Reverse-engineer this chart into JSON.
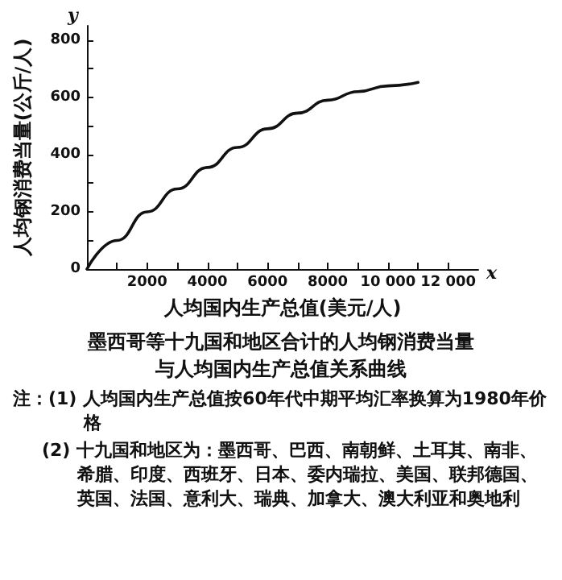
{
  "chart_data": {
    "type": "line",
    "title": "墨西哥等十九国和地区合计的人均钢消费当量与人均国内生产总值关系曲线",
    "xlabel": "人均国内生产总值(美元/人)",
    "ylabel": "人均钢消费当量(公斤/人)",
    "x": [
      0,
      1000,
      2000,
      3000,
      4000,
      5000,
      6000,
      7000,
      8000,
      9000,
      10000,
      11000
    ],
    "series": [
      {
        "color": "#111111",
        "values": [
          0,
          100,
          200,
          280,
          355,
          425,
          490,
          545,
          590,
          620,
          640,
          652
        ]
      }
    ],
    "xlim": [
      0,
      13000
    ],
    "ylim": [
      0,
      850
    ],
    "xticks": [
      {
        "value": 1000,
        "label": null
      },
      2000,
      {
        "value": 3000,
        "label": null
      },
      4000,
      {
        "value": 5000,
        "label": null
      },
      6000,
      {
        "value": 7000,
        "label": null
      },
      8000,
      {
        "value": 9000,
        "label": null
      },
      {
        "value": 10000,
        "label": "10 000"
      },
      {
        "value": 11000,
        "label": null
      },
      {
        "value": 12000,
        "label": "12 000"
      }
    ],
    "yticks": [
      0,
      {
        "value": 100,
        "label": null
      },
      200,
      {
        "value": 300,
        "label": null
      },
      400,
      {
        "value": 500,
        "label": null
      },
      600,
      {
        "value": 700,
        "label": null
      },
      800
    ],
    "grid": false,
    "marker": "none",
    "line_style": "solid",
    "annotations": [
      "y",
      "x",
      "注：(1) 人均国内生产总值按60年代中期平均汇率换算为1980年价格",
      "(2) 十九国和地区为：墨西哥、巴西、南朝鲜、土耳其、南非、希腊、印度、西班牙、日本、委内瑞拉、美国、联邦德国、英国、法国、意利大、瑞典、加拿大、澳大利亚和奥地利"
    ]
  }
}
